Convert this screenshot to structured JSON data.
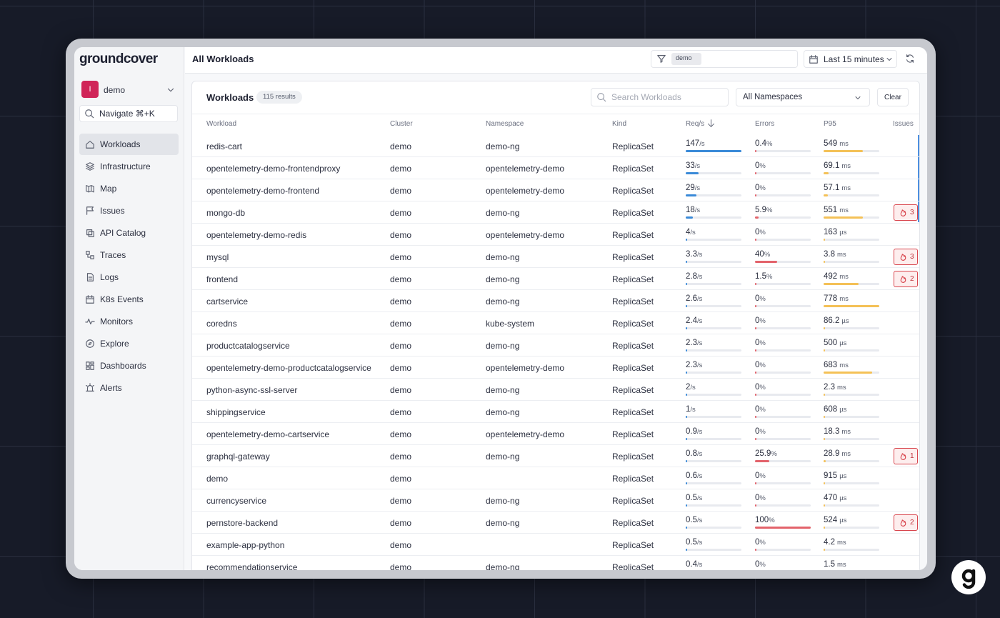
{
  "brand": "groundcover",
  "workspace": {
    "avatar": "I",
    "name": "demo"
  },
  "navigate": "Navigate ⌘+K",
  "nav": [
    "Workloads",
    "Infrastructure",
    "Map",
    "Issues",
    "API Catalog",
    "Traces",
    "Logs",
    "K8s Events",
    "Monitors",
    "Explore",
    "Dashboards",
    "Alerts"
  ],
  "header": {
    "title": "All Workloads",
    "filter": "demo",
    "time": "Last 15 minutes"
  },
  "panel": {
    "title": "Workloads",
    "results": "115 results",
    "search_placeholder": "Search Workloads",
    "namespace": "All Namespaces",
    "clear": "Clear"
  },
  "table": {
    "columns": [
      "Workload",
      "Cluster",
      "Namespace",
      "Kind",
      "Req/s",
      "Errors",
      "P95",
      "Issues"
    ],
    "rows": [
      {
        "workload": "redis-cart",
        "cluster": "demo",
        "namespace": "demo-ng",
        "kind": "ReplicaSet",
        "req": {
          "value": 147,
          "unit": "/s"
        },
        "errors": {
          "value": 0.4,
          "unit": "%"
        },
        "p95": {
          "value": 549,
          "unit": "ms"
        },
        "issues": null
      },
      {
        "workload": "opentelemetry-demo-frontendproxy",
        "cluster": "demo",
        "namespace": "opentelemetry-demo",
        "kind": "ReplicaSet",
        "req": {
          "value": 33,
          "unit": "/s"
        },
        "errors": {
          "value": 0,
          "unit": "%"
        },
        "p95": {
          "value": 69.1,
          "unit": "ms"
        },
        "issues": null
      },
      {
        "workload": "opentelemetry-demo-frontend",
        "cluster": "demo",
        "namespace": "opentelemetry-demo",
        "kind": "ReplicaSet",
        "req": {
          "value": 29,
          "unit": "/s"
        },
        "errors": {
          "value": 0,
          "unit": "%"
        },
        "p95": {
          "value": 57.1,
          "unit": "ms"
        },
        "issues": null
      },
      {
        "workload": "mongo-db",
        "cluster": "demo",
        "namespace": "demo-ng",
        "kind": "ReplicaSet",
        "req": {
          "value": 18,
          "unit": "/s"
        },
        "errors": {
          "value": 5.9,
          "unit": "%"
        },
        "p95": {
          "value": 551,
          "unit": "ms"
        },
        "issues": 3
      },
      {
        "workload": "opentelemetry-demo-redis",
        "cluster": "demo",
        "namespace": "opentelemetry-demo",
        "kind": "ReplicaSet",
        "req": {
          "value": 4,
          "unit": "/s"
        },
        "errors": {
          "value": 0,
          "unit": "%"
        },
        "p95": {
          "value": 163,
          "unit": "µs"
        },
        "issues": null
      },
      {
        "workload": "mysql",
        "cluster": "demo",
        "namespace": "demo-ng",
        "kind": "ReplicaSet",
        "req": {
          "value": 3.3,
          "unit": "/s"
        },
        "errors": {
          "value": 40,
          "unit": "%"
        },
        "p95": {
          "value": 3.8,
          "unit": "ms"
        },
        "issues": 3
      },
      {
        "workload": "frontend",
        "cluster": "demo",
        "namespace": "demo-ng",
        "kind": "ReplicaSet",
        "req": {
          "value": 2.8,
          "unit": "/s"
        },
        "errors": {
          "value": 1.5,
          "unit": "%"
        },
        "p95": {
          "value": 492,
          "unit": "ms"
        },
        "issues": 2
      },
      {
        "workload": "cartservice",
        "cluster": "demo",
        "namespace": "demo-ng",
        "kind": "ReplicaSet",
        "req": {
          "value": 2.6,
          "unit": "/s"
        },
        "errors": {
          "value": 0,
          "unit": "%"
        },
        "p95": {
          "value": 778,
          "unit": "ms"
        },
        "issues": null
      },
      {
        "workload": "coredns",
        "cluster": "demo",
        "namespace": "kube-system",
        "kind": "ReplicaSet",
        "req": {
          "value": 2.4,
          "unit": "/s"
        },
        "errors": {
          "value": 0,
          "unit": "%"
        },
        "p95": {
          "value": 86.2,
          "unit": "µs"
        },
        "issues": null
      },
      {
        "workload": "productcatalogservice",
        "cluster": "demo",
        "namespace": "demo-ng",
        "kind": "ReplicaSet",
        "req": {
          "value": 2.3,
          "unit": "/s"
        },
        "errors": {
          "value": 0,
          "unit": "%"
        },
        "p95": {
          "value": 500,
          "unit": "µs"
        },
        "issues": null
      },
      {
        "workload": "opentelemetry-demo-productcatalogservice",
        "cluster": "demo",
        "namespace": "opentelemetry-demo",
        "kind": "ReplicaSet",
        "req": {
          "value": 2.3,
          "unit": "/s"
        },
        "errors": {
          "value": 0,
          "unit": "%"
        },
        "p95": {
          "value": 683,
          "unit": "ms"
        },
        "issues": null
      },
      {
        "workload": "python-async-ssl-server",
        "cluster": "demo",
        "namespace": "demo-ng",
        "kind": "ReplicaSet",
        "req": {
          "value": 2,
          "unit": "/s"
        },
        "errors": {
          "value": 0,
          "unit": "%"
        },
        "p95": {
          "value": 2.3,
          "unit": "ms"
        },
        "issues": null
      },
      {
        "workload": "shippingservice",
        "cluster": "demo",
        "namespace": "demo-ng",
        "kind": "ReplicaSet",
        "req": {
          "value": 1,
          "unit": "/s"
        },
        "errors": {
          "value": 0,
          "unit": "%"
        },
        "p95": {
          "value": 608,
          "unit": "µs"
        },
        "issues": null
      },
      {
        "workload": "opentelemetry-demo-cartservice",
        "cluster": "demo",
        "namespace": "opentelemetry-demo",
        "kind": "ReplicaSet",
        "req": {
          "value": 0.9,
          "unit": "/s"
        },
        "errors": {
          "value": 0,
          "unit": "%"
        },
        "p95": {
          "value": 18.3,
          "unit": "ms"
        },
        "issues": null
      },
      {
        "workload": "graphql-gateway",
        "cluster": "demo",
        "namespace": "demo-ng",
        "kind": "ReplicaSet",
        "req": {
          "value": 0.8,
          "unit": "/s"
        },
        "errors": {
          "value": 25.9,
          "unit": "%"
        },
        "p95": {
          "value": 28.9,
          "unit": "ms"
        },
        "issues": 1
      },
      {
        "workload": "demo",
        "cluster": "demo",
        "namespace": null,
        "kind": "ReplicaSet",
        "req": {
          "value": 0.6,
          "unit": "/s"
        },
        "errors": {
          "value": 0,
          "unit": "%"
        },
        "p95": {
          "value": 915,
          "unit": "µs"
        },
        "issues": null
      },
      {
        "workload": "currencyservice",
        "cluster": "demo",
        "namespace": "demo-ng",
        "kind": "ReplicaSet",
        "req": {
          "value": 0.5,
          "unit": "/s"
        },
        "errors": {
          "value": 0,
          "unit": "%"
        },
        "p95": {
          "value": 470,
          "unit": "µs"
        },
        "issues": null
      },
      {
        "workload": "pernstore-backend",
        "cluster": "demo",
        "namespace": "demo-ng",
        "kind": "ReplicaSet",
        "req": {
          "value": 0.5,
          "unit": "/s"
        },
        "errors": {
          "value": 100,
          "unit": "%"
        },
        "p95": {
          "value": 524,
          "unit": "µs"
        },
        "issues": 2
      },
      {
        "workload": "example-app-python",
        "cluster": "demo",
        "namespace": null,
        "kind": "ReplicaSet",
        "req": {
          "value": 0.5,
          "unit": "/s"
        },
        "errors": {
          "value": 0,
          "unit": "%"
        },
        "p95": {
          "value": 4.2,
          "unit": "ms"
        },
        "issues": null
      },
      {
        "workload": "recommendationservice",
        "cluster": "demo",
        "namespace": "demo-ng",
        "kind": "ReplicaSet",
        "req": {
          "value": 0.4,
          "unit": "/s"
        },
        "errors": {
          "value": 0,
          "unit": "%"
        },
        "p95": {
          "value": 1.5,
          "unit": "ms"
        },
        "issues": null
      }
    ]
  }
}
